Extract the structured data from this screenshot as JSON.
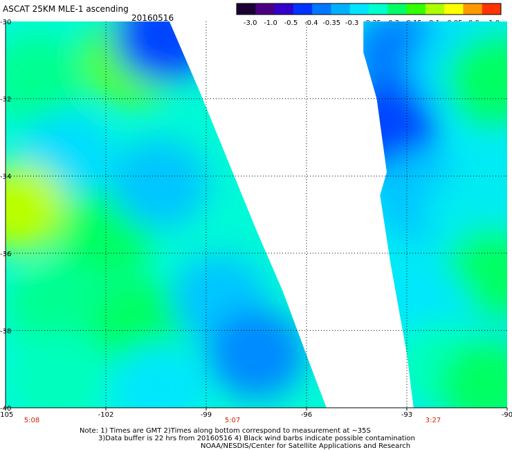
{
  "header": {
    "title": "ASCAT 25KM MLE-1 ascending",
    "date": "20160516"
  },
  "chart_data": {
    "type": "heatmap",
    "title": "ASCAT 25KM MLE-1 ascending",
    "subtitle": "20160516",
    "x_ticks": [
      -105,
      -102,
      -99,
      -96,
      -93,
      -90
    ],
    "y_ticks": [
      -30,
      -32,
      -34,
      -36,
      -38,
      -40
    ],
    "xlim": [
      -105,
      -90
    ],
    "ylim": [
      -40,
      -30
    ],
    "grid": true,
    "time_labels": [
      {
        "lon": -105,
        "label": "5:08"
      },
      {
        "lon": -99,
        "label": "5:07"
      },
      {
        "lon": -93,
        "label": "3:27"
      }
    ],
    "colorbar": {
      "ticks": [
        "-3.0",
        "-1.0",
        "-0.5",
        "-0.4",
        "-0.35",
        "-0.3",
        "-0.25",
        "-0.2",
        "-0.15",
        "-0.1",
        "-0.05",
        "0.0",
        "1.0"
      ],
      "colors": [
        "#1a0033",
        "#4b0082",
        "#3300cc",
        "#0033ff",
        "#0077ff",
        "#00b0ff",
        "#00e5ff",
        "#00ffcc",
        "#00ff66",
        "#33ff00",
        "#aaff00",
        "#ffff00",
        "#ff9900",
        "#ff3300"
      ]
    },
    "swaths": [
      {
        "name": "western swath",
        "polygon": [
          [
            -105,
            -30
          ],
          [
            -100.1,
            -30
          ],
          [
            -99.2,
            -31.8
          ],
          [
            -97.5,
            -35.4
          ],
          [
            -96.7,
            -37.0
          ],
          [
            -95.8,
            -39.1
          ],
          [
            -95.4,
            -40
          ],
          [
            -105,
            -40
          ]
        ],
        "regions": [
          {
            "lon": -104.0,
            "lat": -31.5,
            "value": -0.2
          },
          {
            "lon": -101.2,
            "lat": -31.0,
            "value": -0.12
          },
          {
            "lon": -100.3,
            "lat": -30.4,
            "value": -0.4
          },
          {
            "lon": -103.2,
            "lat": -33.5,
            "value": -0.28
          },
          {
            "lon": -104.6,
            "lat": -34.8,
            "value": -0.08
          },
          {
            "lon": -102.0,
            "lat": -35.5,
            "value": -0.18
          },
          {
            "lon": -100.4,
            "lat": -34.2,
            "value": -0.3
          },
          {
            "lon": -103.5,
            "lat": -37.3,
            "value": -0.2
          },
          {
            "lon": -101.0,
            "lat": -37.8,
            "value": -0.18
          },
          {
            "lon": -98.6,
            "lat": -37.2,
            "value": -0.3
          },
          {
            "lon": -97.5,
            "lat": -38.6,
            "value": -0.35
          },
          {
            "lon": -103.4,
            "lat": -39.2,
            "value": -0.22
          },
          {
            "lon": -100.4,
            "lat": -39.5,
            "value": -0.27
          }
        ]
      },
      {
        "name": "eastern swath",
        "polygon": [
          [
            -94.3,
            -30
          ],
          [
            -90,
            -30
          ],
          [
            -90,
            -40
          ],
          [
            -92.8,
            -40
          ],
          [
            -93.0,
            -38.6
          ],
          [
            -93.5,
            -36.2
          ],
          [
            -93.8,
            -34.5
          ],
          [
            -93.6,
            -33.9
          ],
          [
            -93.9,
            -32.0
          ],
          [
            -94.3,
            -30.8
          ]
        ],
        "regions": [
          {
            "lon": -93.2,
            "lat": -30.9,
            "value": -0.36
          },
          {
            "lon": -93.6,
            "lat": -32.8,
            "value": -0.4
          },
          {
            "lon": -91.4,
            "lat": -31.2,
            "value": -0.28
          },
          {
            "lon": -90.4,
            "lat": -31.5,
            "value": -0.18
          },
          {
            "lon": -92.6,
            "lat": -34.5,
            "value": -0.3
          },
          {
            "lon": -91.0,
            "lat": -35.0,
            "value": -0.26
          },
          {
            "lon": -90.4,
            "lat": -36.5,
            "value": -0.18
          },
          {
            "lon": -92.5,
            "lat": -37.5,
            "value": -0.27
          },
          {
            "lon": -92.0,
            "lat": -38.9,
            "value": -0.22
          },
          {
            "lon": -90.6,
            "lat": -39.4,
            "value": -0.18
          }
        ]
      }
    ]
  },
  "notes": {
    "line1": "Note: 1) Times are GMT 2)Times along bottom correspond to measurement at ~35S",
    "line2": "3)Data buffer is 22 hrs from 20160516 4) Black wind barbs indicate possible contamination",
    "line3": "NOAA/NESDIS/Center for Satellite Applications and Research"
  }
}
